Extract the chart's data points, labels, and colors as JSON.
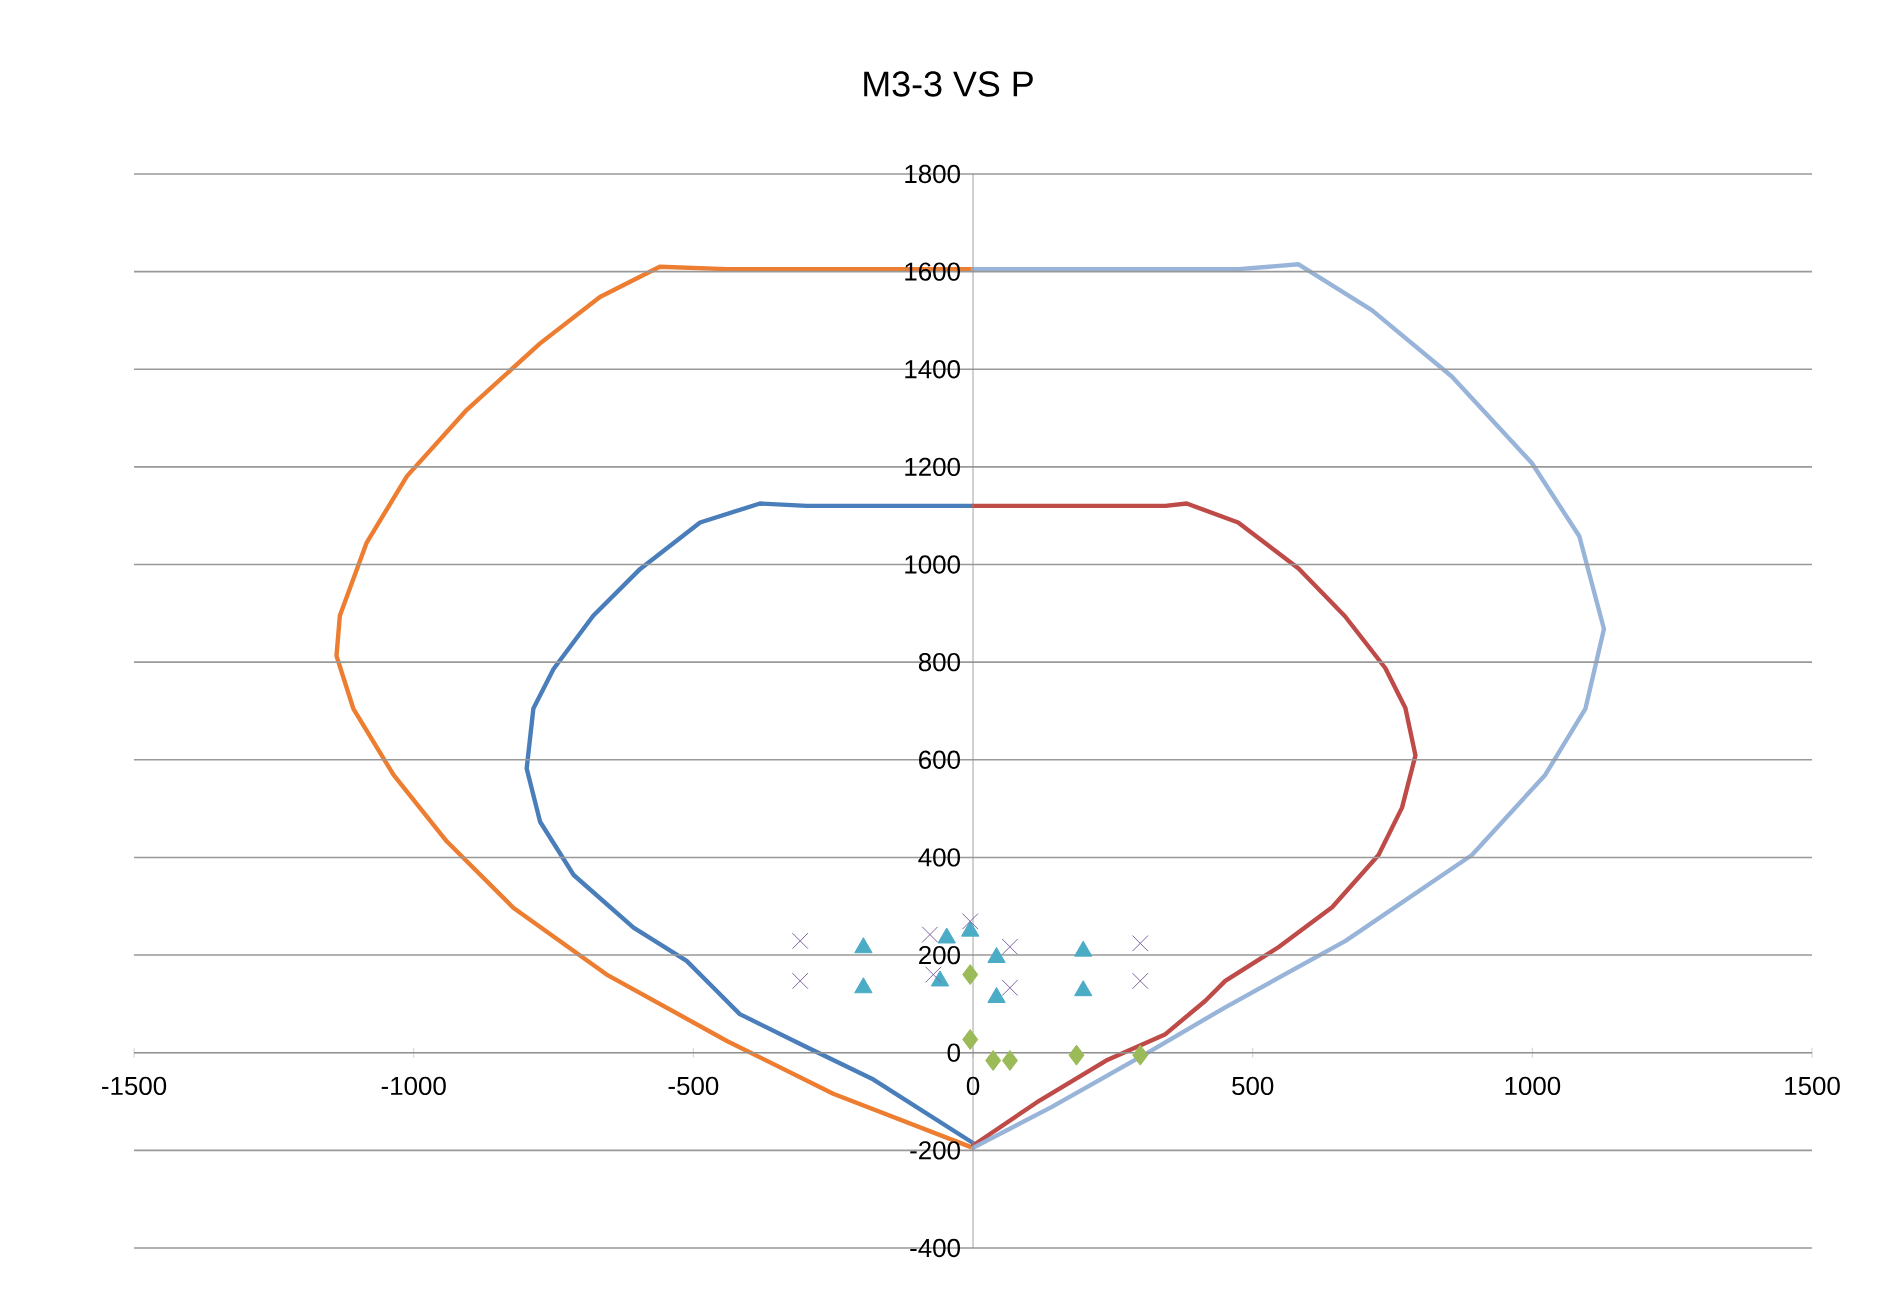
{
  "chart_data": {
    "type": "line",
    "title": "M3-3 VS P",
    "xlim": [
      -1500,
      1500
    ],
    "ylim": [
      -400,
      1800
    ],
    "xticks": [
      -1500,
      -1000,
      -500,
      0,
      500,
      1000,
      1500
    ],
    "yticks": [
      -400,
      -200,
      0,
      200,
      400,
      600,
      800,
      1000,
      1200,
      1400,
      1600,
      1800
    ],
    "grid": "y",
    "line_style": "solid",
    "marker": "none",
    "series": [
      {
        "color": "#ed7d31",
        "x": [
          0,
          -440,
          -560,
          -667,
          -774,
          -905,
          -1012,
          -1084,
          -1132,
          -1138,
          -1108,
          -1036,
          -941,
          -822,
          -655,
          -440,
          -250,
          0
        ],
        "values": [
          1605,
          1605,
          1610,
          1548,
          1453,
          1317,
          1181,
          1045,
          895,
          813,
          705,
          569,
          433,
          297,
          160,
          24,
          -84,
          -195
        ]
      },
      {
        "color": "#4a7ebb",
        "x": [
          0,
          -297,
          -381,
          -488,
          -595,
          -679,
          -750,
          -786,
          -798,
          -774,
          -714,
          -607,
          -512,
          -464,
          -417,
          -297,
          -178,
          0
        ],
        "values": [
          1120,
          1120,
          1125,
          1086,
          991,
          895,
          786,
          705,
          582,
          473,
          364,
          256,
          188,
          133,
          79,
          11,
          -55,
          -185
        ]
      },
      {
        "color": "#be4b48",
        "x": [
          0,
          344,
          382,
          474,
          582,
          665,
          737,
          773,
          791,
          767,
          725,
          642,
          546,
          451,
          415,
          344,
          238,
          119,
          0
        ],
        "values": [
          1120,
          1120,
          1125,
          1086,
          992,
          894,
          788,
          706,
          609,
          502,
          405,
          298,
          216,
          147,
          106,
          38,
          -16,
          -98,
          -190
        ]
      },
      {
        "color": "#98b4d9",
        "x": [
          0,
          475,
          582,
          713,
          856,
          999,
          1084,
          1128,
          1095,
          1023,
          892,
          666,
          451,
          308,
          141,
          0
        ],
        "values": [
          1605,
          1605,
          1615,
          1521,
          1385,
          1208,
          1058,
          868,
          705,
          569,
          405,
          229,
          93,
          -3,
          -111,
          -195
        ]
      },
      {
        "type": "scatter",
        "marker": "diamond",
        "color": "#9bbb59",
        "x": [
          -5,
          -5,
          36,
          66,
          185,
          299
        ],
        "values": [
          160,
          27,
          -16,
          -16,
          -5,
          -5
        ]
      },
      {
        "type": "scatter",
        "marker": "triangle",
        "color": "#4bacc6",
        "x": [
          -196,
          -196,
          -47,
          -59,
          -5,
          42,
          42,
          197,
          197
        ],
        "values": [
          215,
          133,
          235,
          147,
          249,
          195,
          113,
          208,
          127
        ]
      },
      {
        "type": "scatter",
        "marker": "cross",
        "color": "#8064a2",
        "x": [
          -309,
          -309,
          -77,
          -71,
          -5,
          66,
          66,
          299,
          299
        ],
        "values": [
          229,
          147,
          242,
          160,
          269,
          217,
          133,
          224,
          147
        ]
      }
    ]
  }
}
